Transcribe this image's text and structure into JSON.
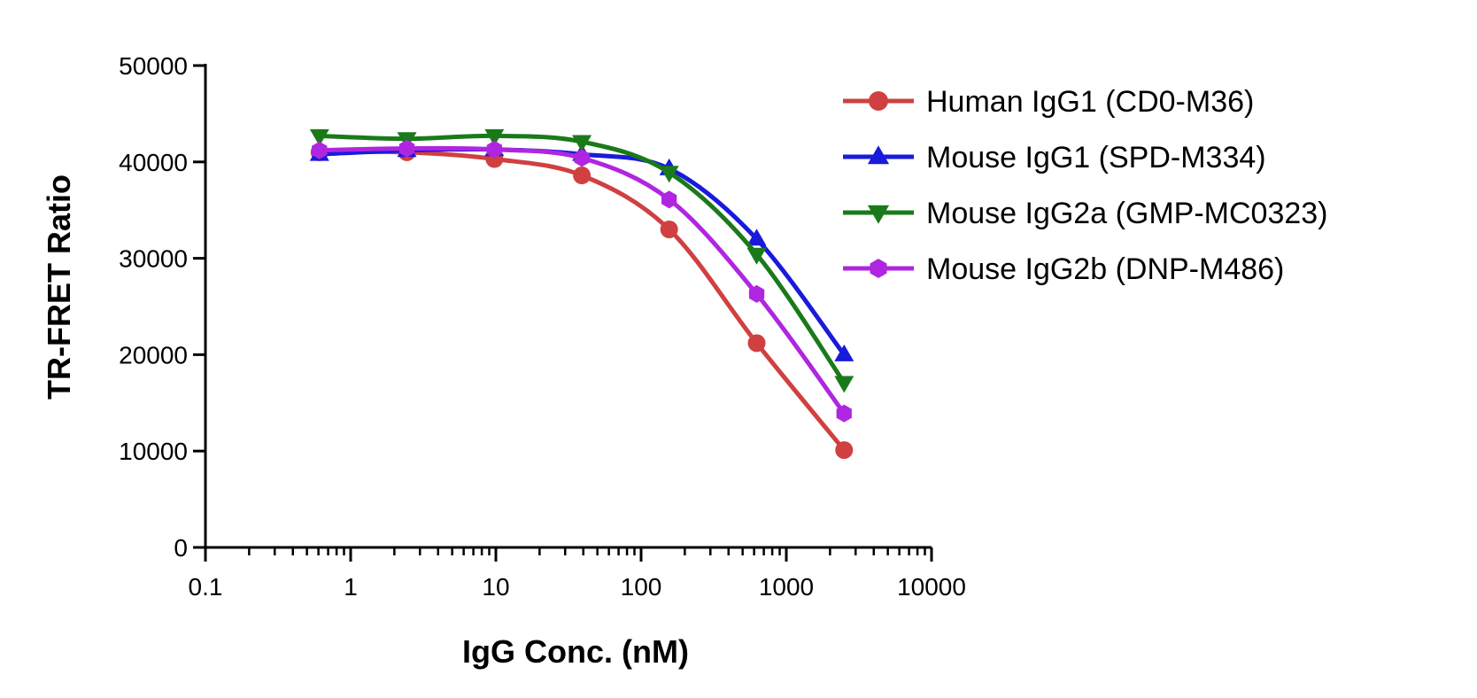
{
  "chart_data": {
    "type": "line",
    "xlabel": "IgG Conc. (nM)",
    "ylabel": "TR-FRET Ratio",
    "xscale": "log",
    "xlim": [
      0.1,
      10000
    ],
    "ylim": [
      0,
      50000
    ],
    "x_ticks": [
      "0.1",
      "1",
      "10",
      "100",
      "1000",
      "10000"
    ],
    "y_ticks": [
      "0",
      "10000",
      "20000",
      "30000",
      "40000",
      "50000"
    ],
    "grid": false,
    "legend_position": "top-right",
    "x": [
      0.61,
      2.44,
      9.77,
      39.1,
      156,
      625,
      2500
    ],
    "series": [
      {
        "name": "Human IgG1 (CD0-M36)",
        "color": "#d04040",
        "marker": "circle",
        "values": [
          41000,
          41000,
          40300,
          38600,
          33000,
          21200,
          10100
        ]
      },
      {
        "name": "Mouse IgG1 (SPD-M334)",
        "color": "#1a1adb",
        "marker": "triangle-up",
        "values": [
          40800,
          41200,
          41300,
          40800,
          39300,
          32000,
          20000
        ]
      },
      {
        "name": "Mouse IgG2a (GMP-MC0323)",
        "color": "#1a7a1a",
        "marker": "triangle-down",
        "values": [
          42700,
          42400,
          42700,
          42100,
          38900,
          30400,
          17100
        ]
      },
      {
        "name": "Mouse IgG2b (DNP-M486)",
        "color": "#b026e0",
        "marker": "hexagon",
        "values": [
          41200,
          41400,
          41300,
          40400,
          36100,
          26300,
          13900
        ]
      }
    ]
  }
}
